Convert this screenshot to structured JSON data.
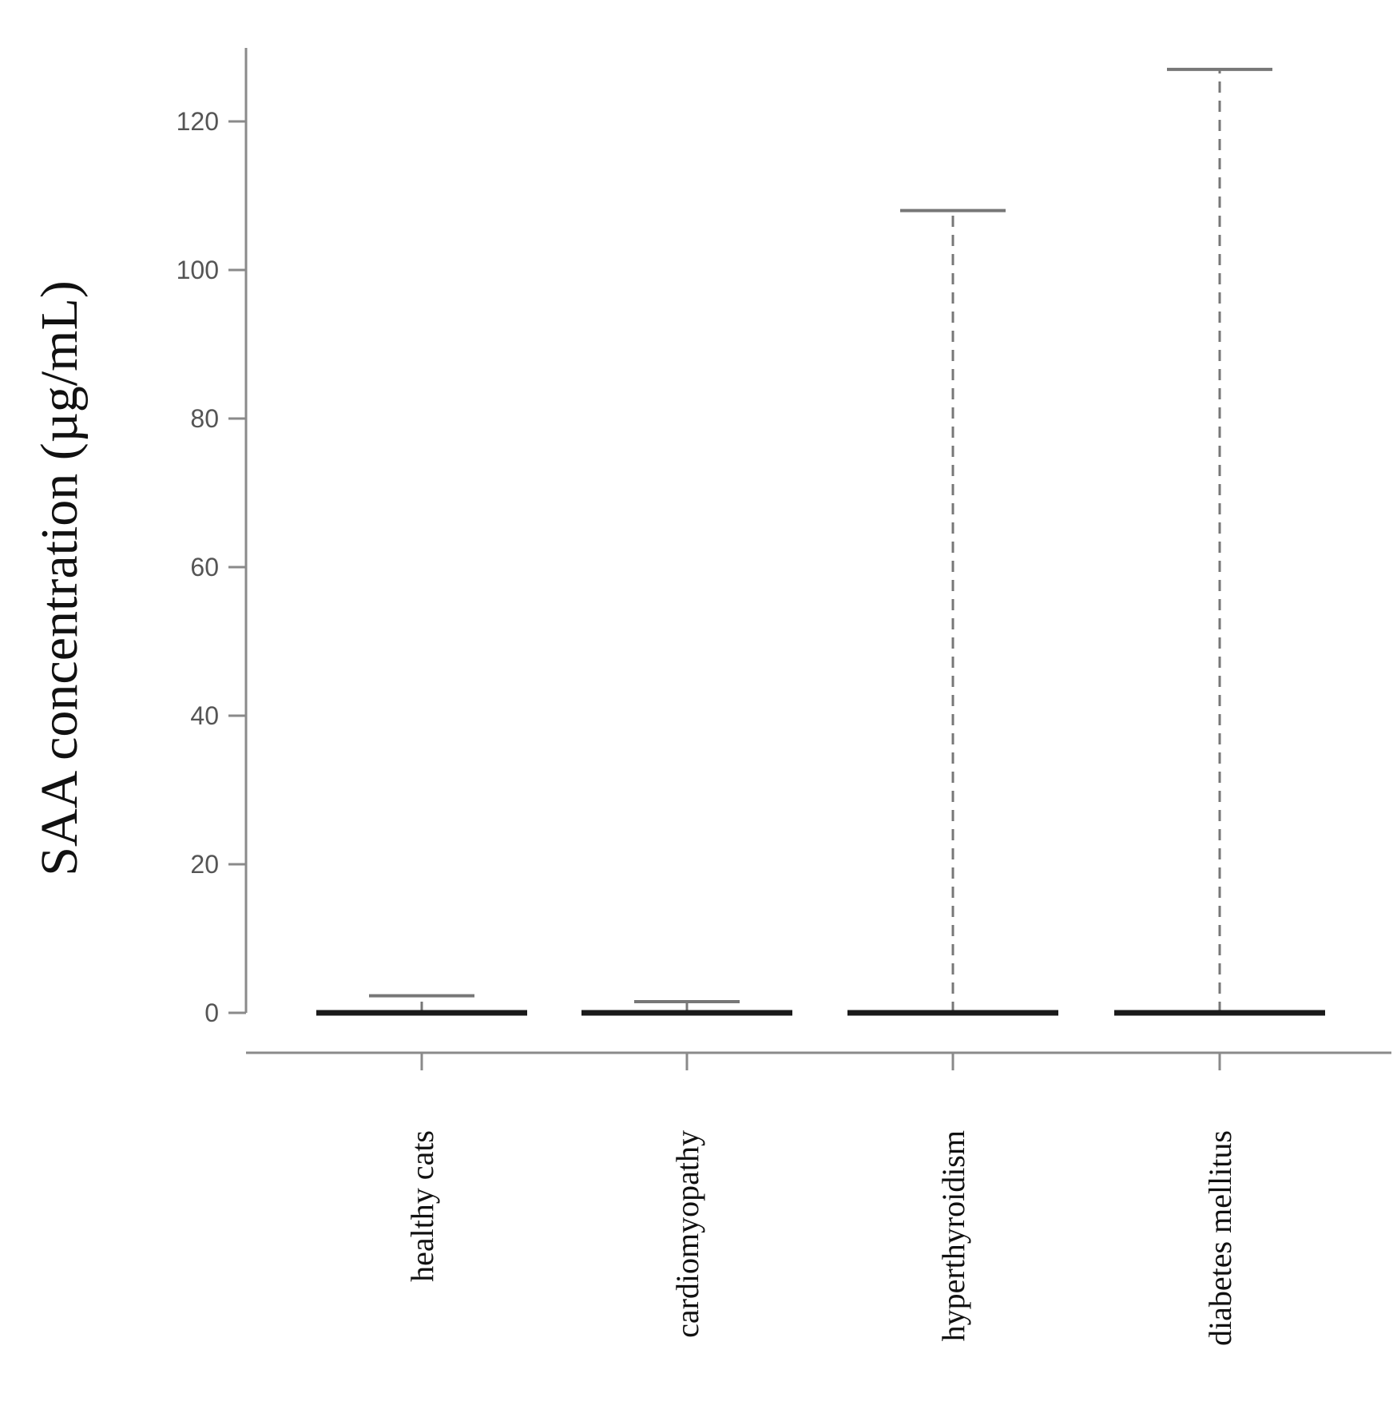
{
  "chart_data": {
    "type": "box",
    "ylabel": "SAA concentration (µg/mL)",
    "xlabel": "",
    "ylim": [
      -5,
      130
    ],
    "yticks": [
      0,
      20,
      40,
      60,
      80,
      100,
      120
    ],
    "categories": [
      "healthy cats",
      "cardiomyopathy",
      "hyperthyroidism",
      "diabetes mellitus"
    ],
    "boxes": [
      {
        "category": "healthy cats",
        "min": 0,
        "q1": 0,
        "median": 0,
        "q3": 0,
        "max": 2.3
      },
      {
        "category": "cardiomyopathy",
        "min": 0,
        "q1": 0,
        "median": 0,
        "q3": 0,
        "max": 1.5
      },
      {
        "category": "hyperthyroidism",
        "min": 0,
        "q1": 0,
        "median": 0,
        "q3": 0,
        "max": 108
      },
      {
        "category": "diabetes mellitus",
        "min": 0,
        "q1": 0,
        "median": 0,
        "q3": 0,
        "max": 127
      }
    ],
    "grid": false,
    "legend": "none",
    "colors": {
      "axis": "#8a8a8a",
      "median": "#1a1a1a",
      "whisker": "#777777"
    }
  }
}
